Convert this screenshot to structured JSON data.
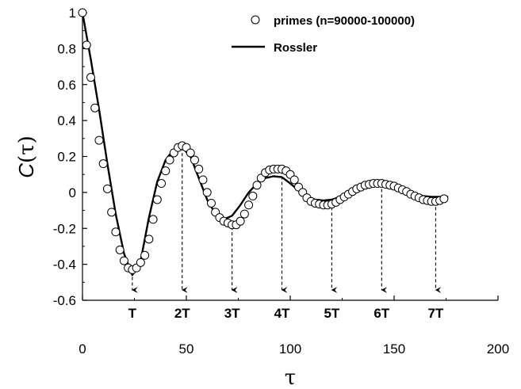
{
  "chart_data": {
    "type": "scatter",
    "xlim": [
      0,
      200
    ],
    "ylim": [
      -0.6,
      1
    ],
    "x_ticks": [
      "0",
      "50",
      "100",
      "150",
      "200"
    ],
    "y_ticks": [
      "1",
      "0.8",
      "0.6",
      "0.4",
      "0.2",
      "0",
      "-0.2",
      "-0.4",
      "-0.6"
    ],
    "xlabel": "τ",
    "ylabel": "C(τ)",
    "grid": false,
    "legend_position": "top-right",
    "series": [
      {
        "name": "primes (n=90000-100000)",
        "marker": "open-circle",
        "color": "#000000",
        "x": [
          0,
          2,
          4,
          6,
          8,
          10,
          12,
          14,
          16,
          18,
          20,
          22,
          24,
          26,
          28,
          30,
          32,
          34,
          36,
          38,
          40,
          42,
          44,
          46,
          48,
          50,
          52,
          54,
          56,
          58,
          60,
          62,
          64,
          66,
          68,
          70,
          72,
          74,
          76,
          78,
          80,
          82,
          84,
          86,
          88,
          90,
          92,
          94,
          96,
          98,
          100,
          102,
          104,
          106,
          108,
          110,
          112,
          114,
          116,
          118,
          120,
          122,
          124,
          126,
          128,
          130,
          132,
          134,
          136,
          138,
          140,
          142,
          144,
          146,
          148,
          150,
          152,
          154,
          156,
          158,
          160,
          162,
          164,
          166,
          168,
          170,
          172,
          174
        ],
        "y": [
          1,
          0.82,
          0.64,
          0.47,
          0.29,
          0.16,
          0.02,
          -0.11,
          -0.22,
          -0.32,
          -0.38,
          -0.42,
          -0.43,
          -0.42,
          -0.39,
          -0.35,
          -0.26,
          -0.15,
          -0.04,
          0.05,
          0.12,
          0.18,
          0.22,
          0.25,
          0.26,
          0.25,
          0.22,
          0.18,
          0.13,
          0.07,
          0.0,
          -0.06,
          -0.11,
          -0.14,
          -0.16,
          -0.17,
          -0.18,
          -0.18,
          -0.16,
          -0.12,
          -0.07,
          -0.02,
          0.04,
          0.08,
          0.11,
          0.125,
          0.13,
          0.13,
          0.13,
          0.12,
          0.1,
          0.07,
          0.03,
          0.0,
          -0.03,
          -0.05,
          -0.06,
          -0.065,
          -0.07,
          -0.07,
          -0.065,
          -0.055,
          -0.04,
          -0.025,
          -0.01,
          0.005,
          0.02,
          0.03,
          0.04,
          0.045,
          0.05,
          0.05,
          0.05,
          0.045,
          0.04,
          0.035,
          0.025,
          0.015,
          0.005,
          -0.01,
          -0.02,
          -0.03,
          -0.04,
          -0.045,
          -0.05,
          -0.05,
          -0.045,
          -0.035
        ]
      },
      {
        "name": "Rossler",
        "marker": "line",
        "color": "#000000",
        "x": [
          0,
          4,
          8,
          12,
          16,
          20,
          24,
          28,
          32,
          36,
          40,
          44,
          48,
          52,
          56,
          60,
          64,
          68,
          72,
          76,
          80,
          84,
          88,
          92,
          96,
          100,
          104,
          108,
          112,
          116,
          120,
          124,
          128,
          132,
          136,
          140,
          144,
          148,
          152,
          156,
          160,
          164,
          168,
          172,
          176
        ],
        "y": [
          1,
          0.74,
          0.46,
          0.16,
          -0.12,
          -0.34,
          -0.46,
          -0.38,
          -0.14,
          0.06,
          0.18,
          0.24,
          0.25,
          0.2,
          0.08,
          -0.04,
          -0.12,
          -0.15,
          -0.13,
          -0.07,
          0.0,
          0.05,
          0.08,
          0.09,
          0.085,
          0.05,
          0.01,
          -0.02,
          -0.04,
          -0.045,
          -0.04,
          -0.025,
          -0.005,
          0.015,
          0.035,
          0.045,
          0.05,
          0.04,
          0.02,
          0.0,
          -0.01,
          -0.02,
          -0.025,
          -0.025,
          -0.025
        ]
      }
    ],
    "annotations": [
      {
        "label": "T",
        "x": 24,
        "y_from": -0.47
      },
      {
        "label": "2T",
        "x": 48,
        "y_from": 0.25
      },
      {
        "label": "3T",
        "x": 72,
        "y_from": -0.16
      },
      {
        "label": "4T",
        "x": 96,
        "y_from": 0.12
      },
      {
        "label": "5T",
        "x": 120,
        "y_from": -0.05
      },
      {
        "label": "6T",
        "x": 144,
        "y_from": 0.05
      },
      {
        "label": "7T",
        "x": 170,
        "y_from": -0.02
      }
    ]
  }
}
